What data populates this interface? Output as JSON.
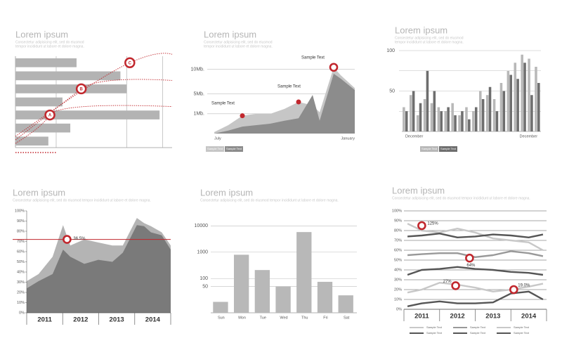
{
  "chart_data": [
    {
      "type": "hbar",
      "title": "Lorem ipsum",
      "subtitle": [
        "Consectetur adipisicing elit, sed do eiusmod",
        "tempor incididunt ut labore et dolore magna."
      ],
      "categories": [
        null,
        null,
        null,
        null,
        null,
        null,
        null
      ],
      "values": [
        39,
        67,
        71,
        30,
        92,
        35,
        21
      ],
      "color": "#b3b3b3",
      "xlim": [
        0,
        100
      ],
      "xgrid": [
        26,
        71,
        94
      ],
      "annotations": [
        {
          "label": "A",
          "x": 22,
          "y": 4
        },
        {
          "label": "B",
          "x": 42,
          "y": 2
        },
        {
          "label": "C",
          "x": 73,
          "y": 0
        }
      ],
      "annotation_color": "#c1272d"
    },
    {
      "type": "area",
      "title": "Lorem ipsum",
      "subtitle": [
        "Consectetur adipisicing elit, sed do eiusmod",
        "tempor incididunt ut labore et dolore magna."
      ],
      "x": [
        0,
        2,
        4,
        6,
        8,
        10,
        12,
        14,
        15,
        17,
        18,
        20
      ],
      "xlim": [
        0,
        20
      ],
      "xticks": [
        {
          "value": 0,
          "label": "July"
        },
        {
          "value": 20,
          "label": "January"
        }
      ],
      "ylim": [
        -3,
        11.5
      ],
      "yticks": [
        {
          "value": 1,
          "label": "1Mb."
        },
        {
          "value": 5,
          "label": "5Mb."
        },
        {
          "value": 10,
          "label": "10Mb."
        }
      ],
      "grid": true,
      "series": [
        {
          "name": "Sample Text",
          "color": "#c6c6c6",
          "values": [
            -2.7,
            -1.3,
            0.6,
            1.0,
            1.0,
            2.0,
            3.4,
            2.7,
            1.3,
            10.4,
            8.8,
            6.2
          ]
        },
        {
          "name": "Sample Text",
          "color": "#8c8c8c",
          "values": [
            -3,
            -2.4,
            -1.6,
            -1.3,
            -1.0,
            -0.4,
            0.1,
            4.8,
            -0.4,
            9.1,
            8.1,
            5.8
          ]
        }
      ],
      "annotations": [
        {
          "label": "Sample Text",
          "x": 4,
          "y": 0.6
        },
        {
          "label": "Sample Text",
          "x": 12,
          "y": 3.4
        },
        {
          "label": "Sample Text",
          "x": 17,
          "y": 10.4
        }
      ],
      "annotation_color": "#c1272d"
    },
    {
      "type": "bar",
      "title": "Lorem ipsum",
      "subtitle": [
        "Consectetur adipisicing elit, sed do eiusmod",
        "tempor incididunt ut labore et dolore magna."
      ],
      "categories": [
        "December",
        null,
        null,
        null,
        null,
        null,
        null,
        null,
        null,
        null,
        null,
        null,
        null,
        null,
        null,
        null,
        null,
        null,
        null,
        "December"
      ],
      "series": [
        {
          "name": "Sample Text",
          "color": "#b8b8b8",
          "values": [
            30,
            45,
            20,
            40,
            35,
            30,
            25,
            35,
            20,
            30,
            25,
            50,
            45,
            40,
            60,
            75,
            85,
            95,
            90,
            80
          ]
        },
        {
          "name": "Sample Text",
          "color": "#6e6e6e",
          "values": [
            25,
            50,
            35,
            75,
            50,
            25,
            30,
            20,
            25,
            15,
            30,
            40,
            55,
            25,
            50,
            70,
            65,
            85,
            45,
            60
          ]
        }
      ],
      "ylim": [
        0,
        100
      ],
      "yticks": [
        50,
        100
      ],
      "ygrid": [
        25,
        75
      ],
      "grid": true
    },
    {
      "type": "area",
      "title": "Lorem ipsum",
      "subtitle": [
        "Consectetur adipisicing elit, sed do eiusmod tempor incididunt ut labore et dolore magna."
      ],
      "x": [
        2010.5,
        2010.83,
        2011.22,
        2011.51,
        2011.71,
        2012.1,
        2012.49,
        2012.88,
        2013.17,
        2013.56,
        2013.76,
        2013.95,
        2014.25,
        2014.5
      ],
      "xlim": [
        2010.5,
        2014.5
      ],
      "xticks": [
        2011,
        2012,
        2013,
        2014
      ],
      "ylim": [
        0,
        100
      ],
      "yticks": [
        {
          "value": 0,
          "label": "0%"
        },
        {
          "value": 10,
          "label": "10%"
        },
        {
          "value": 20,
          "label": "20%"
        },
        {
          "value": 30,
          "label": "30%"
        },
        {
          "value": 40,
          "label": "40%"
        },
        {
          "value": 50,
          "label": "50%"
        },
        {
          "value": 60,
          "label": "60%"
        },
        {
          "value": 70,
          "label": "70%"
        },
        {
          "value": 80,
          "label": "80%"
        },
        {
          "value": 90,
          "label": "90%"
        },
        {
          "value": 100,
          "label": "100%"
        }
      ],
      "grid": false,
      "series": [
        {
          "color": "#b4b4b4",
          "values": [
            31,
            38,
            55,
            86,
            66,
            72,
            69,
            66,
            66,
            93,
            88,
            85,
            79,
            66
          ]
        },
        {
          "color": "#7a7a7a",
          "values": [
            24,
            31,
            38,
            62,
            55,
            48,
            52,
            50,
            59,
            86,
            85,
            79,
            76,
            62
          ]
        }
      ],
      "hline": 72,
      "hline_color": "#c1272d",
      "annotations": [
        {
          "label": "36.5%",
          "x": 2011.62,
          "y": 72
        }
      ],
      "annotation_color": "#c1272d"
    },
    {
      "type": "bar",
      "title": "Lorem ipsum",
      "subtitle": [
        "Consectetur adipisicing elit, sed do eiusmod tempor incididunt ut labore et dolore magna."
      ],
      "categories": [
        "Sun",
        "Mon",
        "Tue",
        "Wed",
        "Thu",
        "Fri",
        "Sat"
      ],
      "values": [
        13,
        800,
        210,
        50,
        5800,
        75,
        23
      ],
      "color": "#b8b8b8",
      "log": true,
      "ylim": [
        5,
        20000
      ],
      "yticks": [
        50,
        100,
        1000,
        10000
      ],
      "grid": true
    },
    {
      "type": "line",
      "title": "Lorem ipsum",
      "subtitle": [
        "Consectetur adipisicing elit, sed do eiusmod tempor incididunt ut labore et dolore magna."
      ],
      "x": [
        2010.6,
        2011,
        2011.5,
        2012,
        2012.5,
        2013,
        2013.5,
        2014,
        2014.4
      ],
      "xlim": [
        2010.5,
        2014.5
      ],
      "xticks": [
        2011,
        2012,
        2013,
        2014
      ],
      "ylim": [
        0,
        100
      ],
      "yticks": [
        {
          "value": 0,
          "label": "0%"
        },
        {
          "value": 10,
          "label": "10%"
        },
        {
          "value": 20,
          "label": "20%"
        },
        {
          "value": 30,
          "label": "30%"
        },
        {
          "value": 40,
          "label": "40%"
        },
        {
          "value": 50,
          "label": "50%"
        },
        {
          "value": 60,
          "label": "60%"
        },
        {
          "value": 70,
          "label": "70%"
        },
        {
          "value": 80,
          "label": "80%"
        },
        {
          "value": 90,
          "label": "90%"
        },
        {
          "value": 100,
          "label": "100%"
        }
      ],
      "grid": true,
      "series": [
        {
          "name": "Sample Text",
          "color": "#c8c8c8",
          "values": [
            87,
            80,
            78,
            82,
            78,
            72,
            70,
            68,
            60
          ]
        },
        {
          "name": "Sample Text",
          "color": "#555555",
          "values": [
            74,
            75,
            77,
            73,
            74,
            76,
            75,
            73,
            76
          ]
        },
        {
          "name": "Sample Text",
          "color": "#999999",
          "values": [
            55,
            56,
            57,
            57,
            53,
            55,
            59,
            57,
            54
          ]
        },
        {
          "name": "Sample Text",
          "color": "#555555",
          "values": [
            35,
            40,
            41,
            43,
            41,
            40,
            38,
            37,
            35
          ]
        },
        {
          "name": "Sample Text",
          "color": "#c8c8c8",
          "values": [
            17,
            20,
            27,
            25,
            22,
            18,
            20,
            23,
            26
          ]
        },
        {
          "name": "Sample Text",
          "color": "#555555",
          "values": [
            3,
            6,
            8,
            6,
            6,
            7,
            16,
            18,
            10
          ]
        }
      ],
      "annotations": [
        {
          "label": "125%",
          "x": 2011,
          "y": 85
        },
        {
          "label": "64%",
          "x": 2012.34,
          "y": 52
        },
        {
          "label": "27%",
          "x": 2011.95,
          "y": 24
        },
        {
          "label": "19.0%",
          "x": 2013.58,
          "y": 20
        }
      ],
      "annotation_color": "#c1272d"
    }
  ]
}
